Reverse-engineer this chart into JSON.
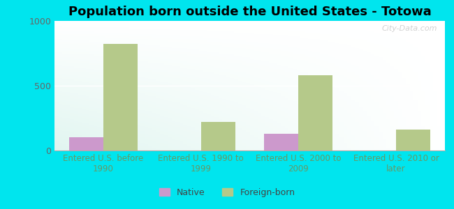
{
  "title": "Population born outside the United States - Totowa",
  "categories": [
    "Entered U.S. before\n1990",
    "Entered U.S. 1990 to\n1999",
    "Entered U.S. 2000 to\n2009",
    "Entered U.S. 2010 or\nlater"
  ],
  "native_values": [
    100,
    0,
    130,
    0
  ],
  "foreign_values": [
    820,
    220,
    580,
    160
  ],
  "native_color": "#cc99cc",
  "foreign_color": "#b5c98a",
  "background_color": "#00e5ee",
  "ylim": [
    0,
    1000
  ],
  "yticks": [
    0,
    500,
    1000
  ],
  "bar_width": 0.35,
  "legend_labels": [
    "Native",
    "Foreign-born"
  ],
  "watermark": "City-Data.com",
  "title_fontsize": 13,
  "axis_label_fontsize": 8.5,
  "tick_fontsize": 9,
  "tick_color": "#666666",
  "xticklabel_color": "#669966"
}
